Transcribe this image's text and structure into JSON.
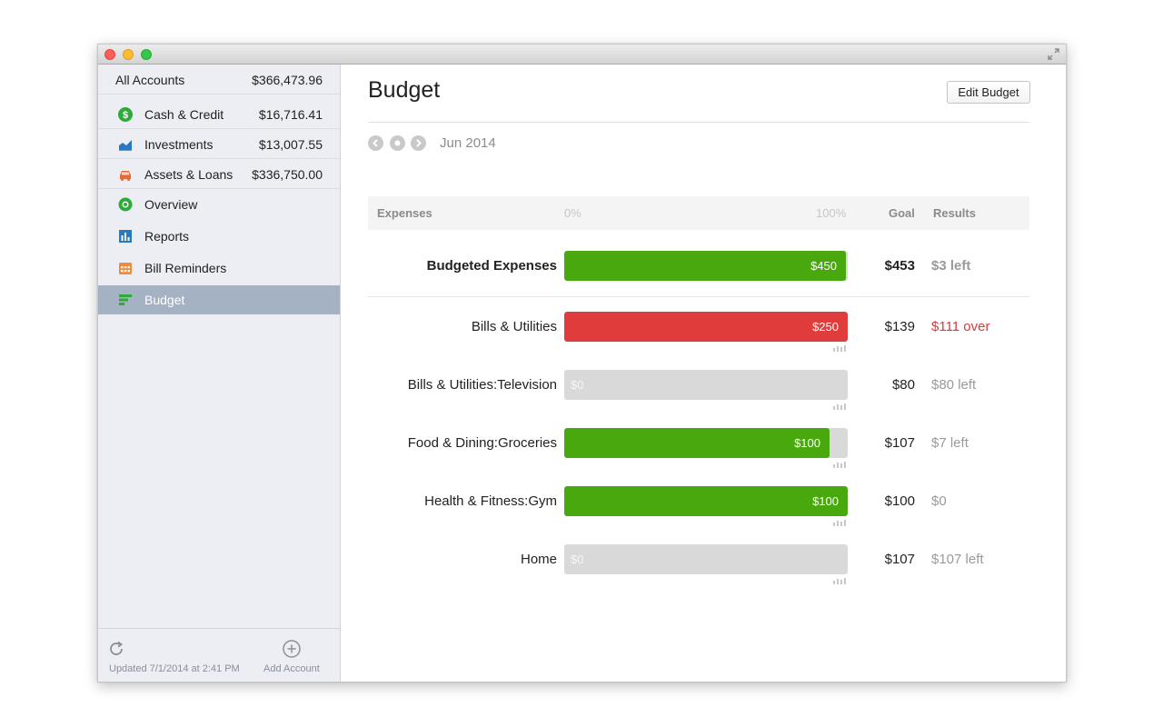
{
  "sidebar": {
    "accounts": [
      {
        "label": "All Accounts",
        "amount": "$366,473.96",
        "icon": ""
      },
      {
        "label": "Cash & Credit",
        "amount": "$16,716.41",
        "icon": "dollar-circle-icon"
      },
      {
        "label": "Investments",
        "amount": "$13,007.55",
        "icon": "chart-icon"
      },
      {
        "label": "Assets & Loans",
        "amount": "$336,750.00",
        "icon": "car-icon"
      }
    ],
    "nav": [
      {
        "label": "Overview",
        "icon": "lifebuoy-icon"
      },
      {
        "label": "Reports",
        "icon": "bar-chart-icon"
      },
      {
        "label": "Bill Reminders",
        "icon": "calendar-icon"
      },
      {
        "label": "Budget",
        "icon": "budget-icon",
        "active": true
      }
    ],
    "footer": {
      "updated": "Updated 7/1/2014 at 2:41 PM",
      "add_account": "Add Account"
    }
  },
  "main": {
    "title": "Budget",
    "edit_button": "Edit Budget",
    "period": "Jun 2014",
    "table_header": {
      "expenses": "Expenses",
      "zero": "0%",
      "hundred": "100%",
      "goal": "Goal",
      "results": "Results"
    },
    "total": {
      "name": "Budgeted Expenses",
      "spent_label": "$450",
      "spent_fraction": 0.993,
      "goal": "$453",
      "result": "$3 left",
      "status": "under"
    },
    "rows": [
      {
        "name": "Bills & Utilities",
        "spent_label": "$250",
        "spent_fraction": 1.0,
        "goal": "$139",
        "result": "$111 over",
        "status": "over"
      },
      {
        "name": "Bills & Utilities:Television",
        "spent_label": "$0",
        "spent_fraction": 0,
        "goal": "$80",
        "result": "$80 left",
        "status": "under"
      },
      {
        "name": "Food & Dining:Groceries",
        "spent_label": "$100",
        "spent_fraction": 0.935,
        "goal": "$107",
        "result": "$7 left",
        "status": "under"
      },
      {
        "name": "Health & Fitness:Gym",
        "spent_label": "$100",
        "spent_fraction": 1.0,
        "goal": "$100",
        "result": "$0",
        "status": "even"
      },
      {
        "name": "Home",
        "spent_label": "$0",
        "spent_fraction": 0,
        "goal": "$107",
        "result": "$107 left",
        "status": "under"
      }
    ]
  },
  "colors": {
    "green": "#48a80d",
    "red": "#e03c3c",
    "track": "#d9d9d9",
    "sidebar_active": "#a5b2c3"
  }
}
